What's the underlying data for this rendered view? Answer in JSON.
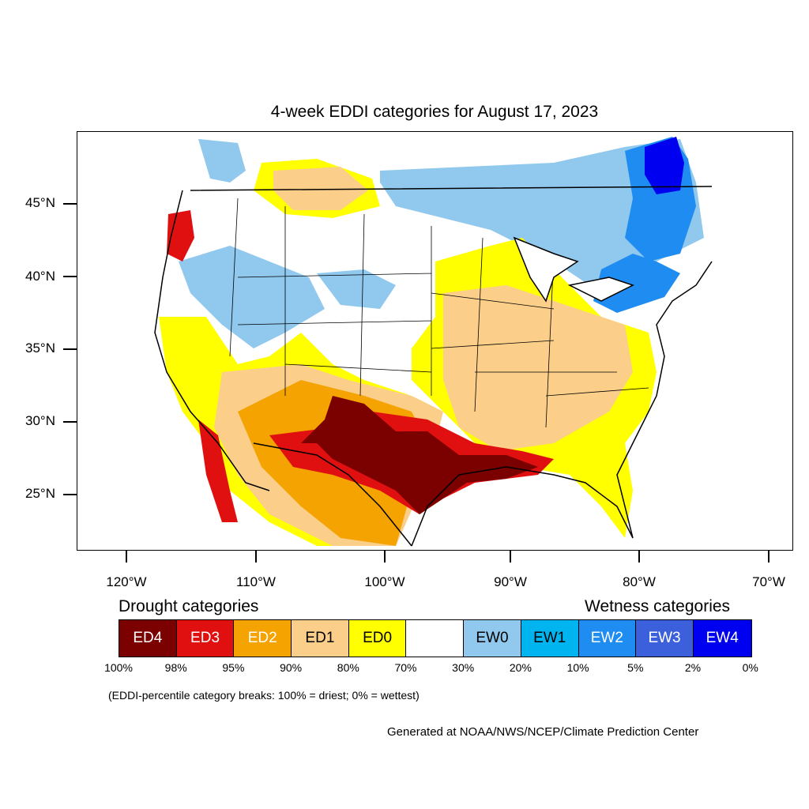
{
  "title": "4-week EDDI categories for August 17, 2023",
  "lat_labels": [
    "45°N",
    "40°N",
    "35°N",
    "30°N",
    "25°N"
  ],
  "lon_labels": [
    "120°W",
    "110°W",
    "100°W",
    "90°W",
    "80°W",
    "70°W"
  ],
  "legend": {
    "drought_heading": "Drought categories",
    "wetness_heading": "Wetness categories",
    "categories": [
      {
        "label": "ED4",
        "color": "#7b0000",
        "text_color": "#ffffff"
      },
      {
        "label": "ED3",
        "color": "#e01010",
        "text_color": "#ffffff"
      },
      {
        "label": "ED2",
        "color": "#f5a300",
        "text_color": "#ffffff"
      },
      {
        "label": "ED1",
        "color": "#fbcf8a",
        "text_color": "#000000"
      },
      {
        "label": "ED0",
        "color": "#ffff00",
        "text_color": "#000000"
      },
      {
        "label": "",
        "color": "#ffffff",
        "text_color": "#000000"
      },
      {
        "label": "EW0",
        "color": "#90c8ee",
        "text_color": "#000000"
      },
      {
        "label": "EW1",
        "color": "#00b4f0",
        "text_color": "#000000"
      },
      {
        "label": "EW2",
        "color": "#1e8cf0",
        "text_color": "#ffffff"
      },
      {
        "label": "EW3",
        "color": "#3c5fdc",
        "text_color": "#ffffff"
      },
      {
        "label": "EW4",
        "color": "#0000f0",
        "text_color": "#ffffff"
      }
    ],
    "breaks": [
      "100%",
      "98%",
      "95%",
      "90%",
      "80%",
      "70%",
      "30%",
      "20%",
      "10%",
      "5%",
      "2%",
      "0%"
    ]
  },
  "note": "(EDDI-percentile category breaks: 100% = driest; 0% = wettest)",
  "credit": "Generated at NOAA/NWS/NCEP/Climate Prediction Center"
}
